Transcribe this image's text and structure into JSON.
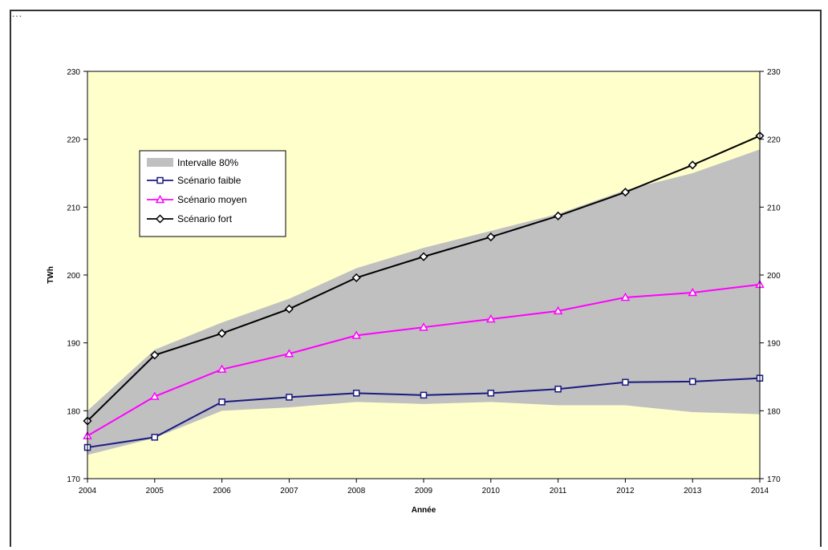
{
  "page": {
    "top_fragment": "…"
  },
  "chart_data": {
    "type": "line",
    "title": "",
    "xlabel": "Année",
    "ylabel": "TWh",
    "x": [
      2004,
      2005,
      2006,
      2007,
      2008,
      2009,
      2010,
      2011,
      2012,
      2013,
      2014
    ],
    "xlim": [
      2004,
      2014
    ],
    "ylim": [
      170,
      230
    ],
    "yticks": [
      170,
      180,
      190,
      200,
      210,
      220,
      230
    ],
    "secondary_y_axis": true,
    "grid": false,
    "legend_position": "upper-left",
    "plot_background": "#ffffcc",
    "band": {
      "name": "Intervalle 80%",
      "color": "#c0c0c0",
      "upper": [
        180.0,
        189.0,
        193.0,
        196.5,
        201.0,
        204.0,
        206.5,
        209.0,
        212.5,
        215.0,
        218.5
      ],
      "lower": [
        173.5,
        176.0,
        180.0,
        180.5,
        181.3,
        181.0,
        181.3,
        180.8,
        180.8,
        179.8,
        179.5
      ]
    },
    "series": [
      {
        "name": "Scénario faible",
        "color": "#1a1a80",
        "marker": "square",
        "values": [
          174.6,
          176.1,
          181.3,
          182.0,
          182.6,
          182.3,
          182.6,
          183.2,
          184.2,
          184.3,
          184.8
        ]
      },
      {
        "name": "Scénario moyen",
        "color": "#ff00ff",
        "marker": "triangle",
        "values": [
          176.3,
          182.1,
          186.1,
          188.4,
          191.1,
          192.3,
          193.5,
          194.7,
          196.7,
          197.4,
          198.6
        ]
      },
      {
        "name": "Scénario fort",
        "color": "#000000",
        "marker": "diamond",
        "values": [
          178.5,
          188.2,
          191.4,
          195.0,
          199.6,
          202.7,
          205.6,
          208.7,
          212.2,
          216.2,
          220.5
        ]
      }
    ]
  }
}
